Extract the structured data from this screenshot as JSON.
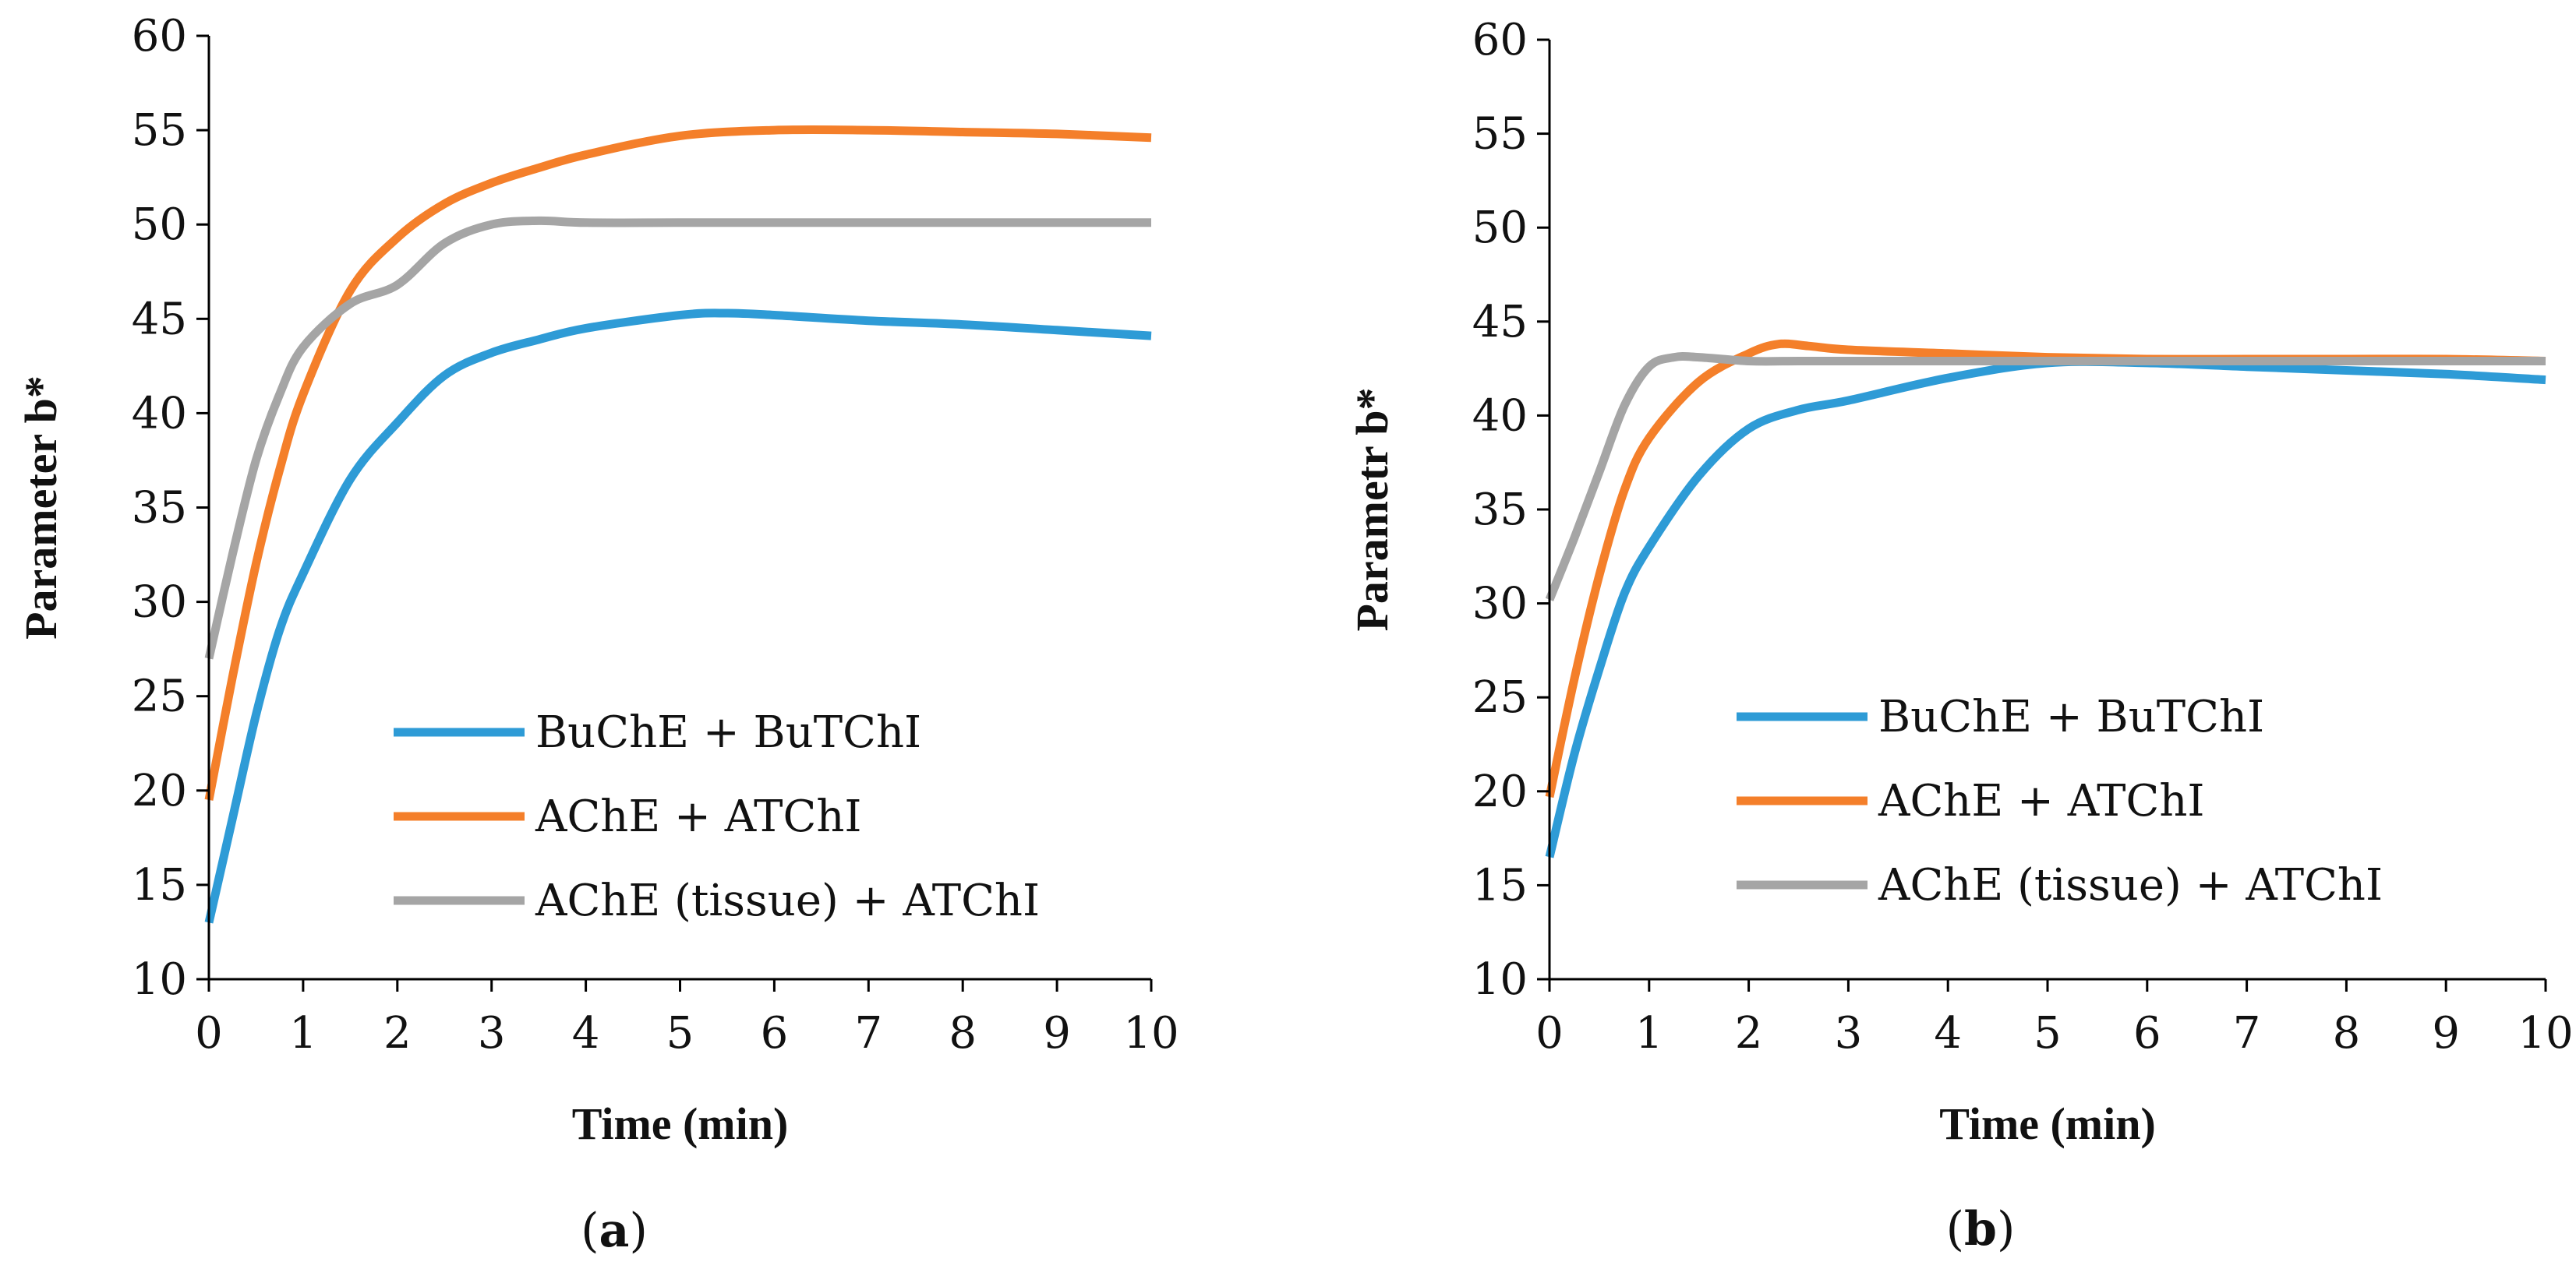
{
  "chart_data": [
    {
      "type": "line",
      "panel_label": "a",
      "xlabel": "Time (min)",
      "ylabel": "Parameter b*",
      "xlim": [
        0,
        10
      ],
      "ylim": [
        10,
        60
      ],
      "x_ticks": [
        0,
        1,
        2,
        3,
        4,
        5,
        6,
        7,
        8,
        9,
        10
      ],
      "y_ticks": [
        10,
        15,
        20,
        25,
        30,
        35,
        40,
        45,
        50,
        55,
        60
      ],
      "grid": false,
      "legend_position": "bottom-right",
      "series": [
        {
          "name": "BuChE + BuTChI",
          "color": "#2E9BD6",
          "x": [
            0,
            0.25,
            0.5,
            0.75,
            1,
            1.5,
            2,
            2.5,
            3,
            3.5,
            4,
            5,
            5.5,
            6,
            7,
            8,
            9,
            10
          ],
          "y": [
            13,
            18.5,
            24,
            28.5,
            31.5,
            36.5,
            39.5,
            42,
            43.2,
            43.9,
            44.5,
            45.2,
            45.3,
            45.2,
            44.9,
            44.7,
            44.4,
            44.1
          ]
        },
        {
          "name": "AChE + ATChI",
          "color": "#F47F2A",
          "x": [
            0,
            0.25,
            0.5,
            0.75,
            1,
            1.5,
            2,
            2.5,
            3,
            3.5,
            4,
            5,
            6,
            7,
            8,
            9,
            10
          ],
          "y": [
            19.5,
            26,
            32,
            37,
            41,
            46.5,
            49.3,
            51.1,
            52.2,
            53,
            53.7,
            54.7,
            55,
            55,
            54.9,
            54.8,
            54.6
          ]
        },
        {
          "name": "AChE (tissue) + ATChI",
          "color": "#A5A5A5",
          "x": [
            0,
            0.25,
            0.5,
            0.75,
            1,
            1.5,
            2,
            2.5,
            3,
            3.5,
            4,
            5,
            6,
            7,
            8,
            9,
            10
          ],
          "y": [
            27,
            32.5,
            37.5,
            41,
            43.5,
            45.8,
            46.8,
            49,
            50,
            50.2,
            50.1,
            50.1,
            50.1,
            50.1,
            50.1,
            50.1,
            50.1
          ]
        }
      ]
    },
    {
      "type": "line",
      "panel_label": "b",
      "xlabel": "Time (min)",
      "ylabel": "Parametr b*",
      "xlim": [
        0,
        10
      ],
      "ylim": [
        10,
        60
      ],
      "x_ticks": [
        0,
        1,
        2,
        3,
        4,
        5,
        6,
        7,
        8,
        9,
        10
      ],
      "y_ticks": [
        10,
        15,
        20,
        25,
        30,
        35,
        40,
        45,
        50,
        55,
        60
      ],
      "grid": false,
      "legend_position": "bottom-right",
      "series": [
        {
          "name": "BuChE + BuTChI",
          "color": "#2E9BD6",
          "x": [
            0,
            0.25,
            0.5,
            0.75,
            1,
            1.5,
            2,
            2.5,
            3,
            4,
            5,
            6,
            7,
            8,
            9,
            10
          ],
          "y": [
            16.5,
            22,
            26.5,
            30.5,
            33,
            36.8,
            39.3,
            40.3,
            40.8,
            42,
            42.8,
            42.8,
            42.6,
            42.4,
            42.2,
            41.9
          ]
        },
        {
          "name": "AChE + ATChI",
          "color": "#F47F2A",
          "x": [
            0,
            0.25,
            0.5,
            0.75,
            1,
            1.5,
            2,
            2.3,
            2.6,
            3,
            4,
            5,
            6,
            7,
            8,
            9,
            10
          ],
          "y": [
            19.7,
            26,
            31.5,
            36,
            38.8,
            41.8,
            43.3,
            43.8,
            43.7,
            43.5,
            43.3,
            43.1,
            43,
            43,
            43,
            43,
            42.9
          ]
        },
        {
          "name": "AChE (tissue) + ATChI",
          "color": "#A5A5A5",
          "x": [
            0,
            0.25,
            0.5,
            0.75,
            1,
            1.25,
            1.5,
            2,
            2.5,
            3,
            4,
            5,
            6,
            7,
            8,
            9,
            10
          ],
          "y": [
            30.2,
            33.5,
            37,
            40.5,
            42.6,
            43.1,
            43.1,
            42.9,
            42.9,
            42.9,
            42.9,
            42.9,
            42.9,
            42.9,
            42.9,
            42.9,
            42.9
          ]
        }
      ]
    }
  ]
}
